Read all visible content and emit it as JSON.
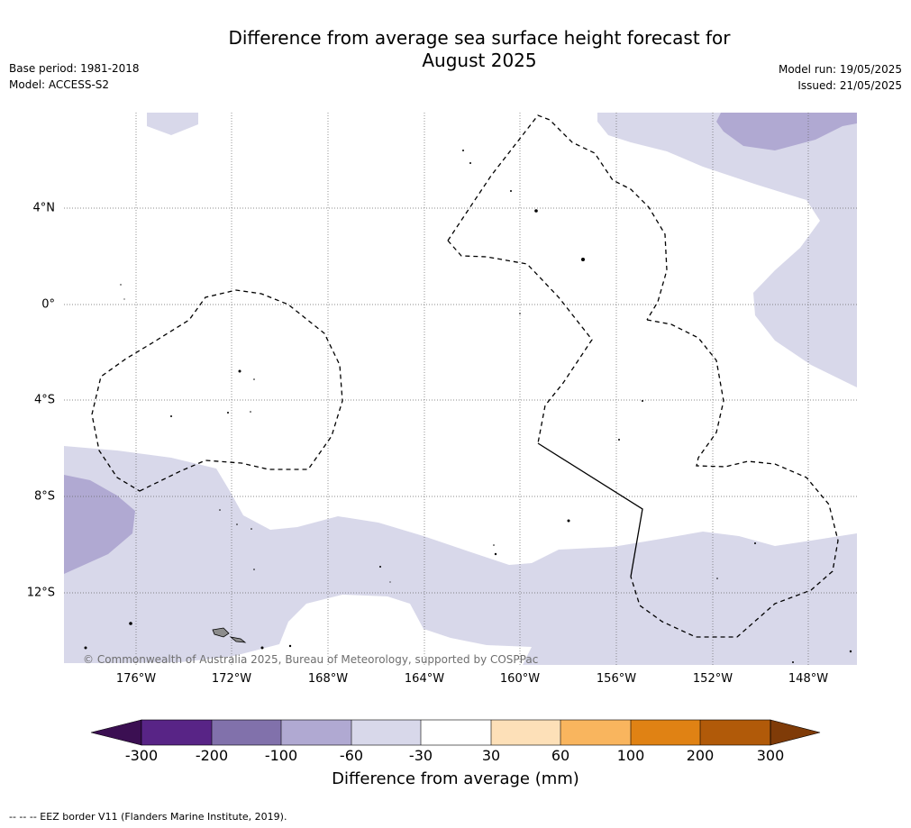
{
  "title_line1": "Difference from average sea surface height forecast for",
  "title_line2": "August 2025",
  "base_period": "Base period: 1981-2018",
  "model": "Model: ACCESS-S2",
  "model_run": "Model run: 19/05/2025",
  "issued": "Issued: 21/05/2025",
  "copyright": "© Commonwealth of Australia 2025, Bureau of Meteorology, supported by COSPPac",
  "map": {
    "lat_labels": [
      "4°N",
      "0°",
      "4°S",
      "8°S",
      "12°S"
    ],
    "lon_labels": [
      "176°W",
      "172°W",
      "168°W",
      "164°W",
      "160°W",
      "156°W",
      "152°W",
      "148°W"
    ],
    "lat_values": [
      4,
      0,
      -4,
      -8,
      -12
    ],
    "lon_values": [
      -176,
      -172,
      -168,
      -164,
      -160,
      -156,
      -152,
      -148
    ]
  },
  "colorbar": {
    "title": "Difference from average (mm)",
    "tick_labels": [
      "-300",
      "-200",
      "-100",
      "-60",
      "-30",
      "30",
      "60",
      "100",
      "200",
      "300"
    ],
    "colors": [
      "#3b0f52",
      "#582486",
      "#8171ab",
      "#b0a9d2",
      "#d8d8ea",
      "#ffffff",
      "#fde0b8",
      "#f9b55e",
      "#e08214",
      "#b15a09",
      "#7f3b08"
    ]
  },
  "footnote": "--  --  -- EEZ border V11 (Flanders Marine Institute, 2019).",
  "colors": {
    "light_purple": "#d8d8ea",
    "medium_purple": "#b0a9d2",
    "land": "#8c8c8c"
  }
}
